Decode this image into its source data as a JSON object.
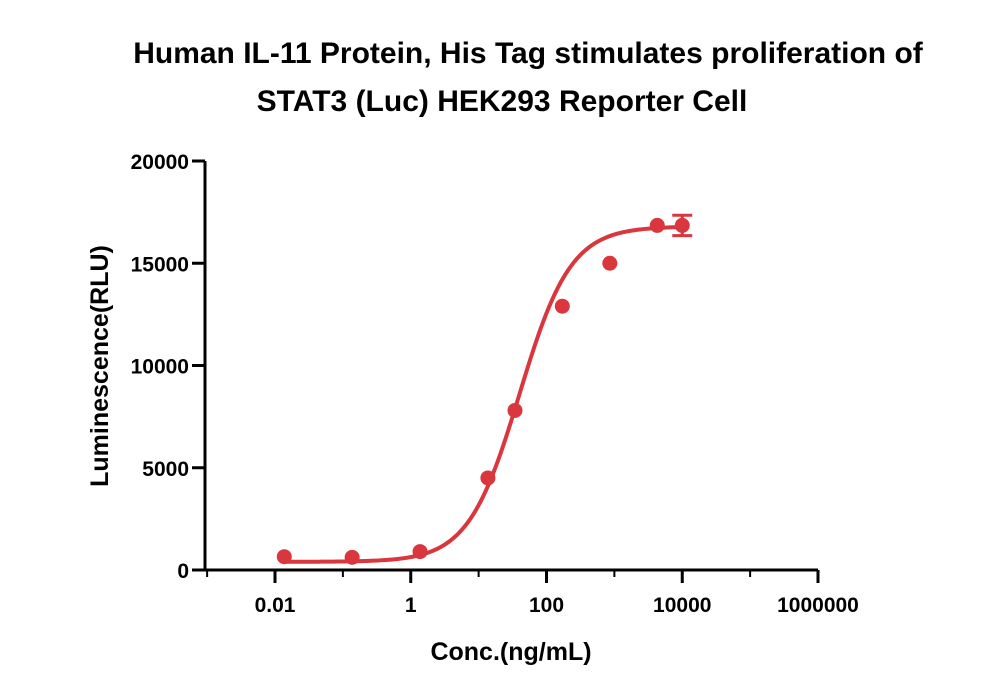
{
  "chart_data": {
    "type": "scatter",
    "title_lines": [
      "Human IL-11 Protein, His Tag stimulates proliferation of",
      "STAT3 (Luc) HEK293 Reporter Cell"
    ],
    "xlabel": "Conc.(ng/mL)",
    "ylabel": "Luminescence(RLU)",
    "x_scale": "log",
    "xlim": [
      0.001,
      1000000
    ],
    "ylim": [
      0,
      20000
    ],
    "x_ticks": [
      0.01,
      1,
      100,
      10000,
      1000000
    ],
    "x_tick_labels": [
      "0.01",
      "1",
      "100",
      "10000",
      "1000000"
    ],
    "y_ticks": [
      0,
      5000,
      10000,
      15000,
      20000
    ],
    "y_tick_labels": [
      "0",
      "5000",
      "10000",
      "15000",
      "20000"
    ],
    "grid": false,
    "color": "#d9373d",
    "series": [
      {
        "points": [
          {
            "x": 0.0137,
            "y": 650,
            "err": 0
          },
          {
            "x": 0.137,
            "y": 620,
            "err": 0
          },
          {
            "x": 1.37,
            "y": 900,
            "err": 0
          },
          {
            "x": 13.7,
            "y": 4500,
            "err": 0
          },
          {
            "x": 34.3,
            "y": 7800,
            "err": 0
          },
          {
            "x": 171,
            "y": 12900,
            "err": 0
          },
          {
            "x": 857,
            "y": 15000,
            "err": 0
          },
          {
            "x": 4286,
            "y": 16850,
            "err": 0
          },
          {
            "x": 10000,
            "y": 16850,
            "err": 500
          }
        ],
        "fit": {
          "type": "4PL",
          "bottom": 400,
          "top": 16800,
          "ec50": 40,
          "hill": 1.15
        }
      }
    ]
  }
}
